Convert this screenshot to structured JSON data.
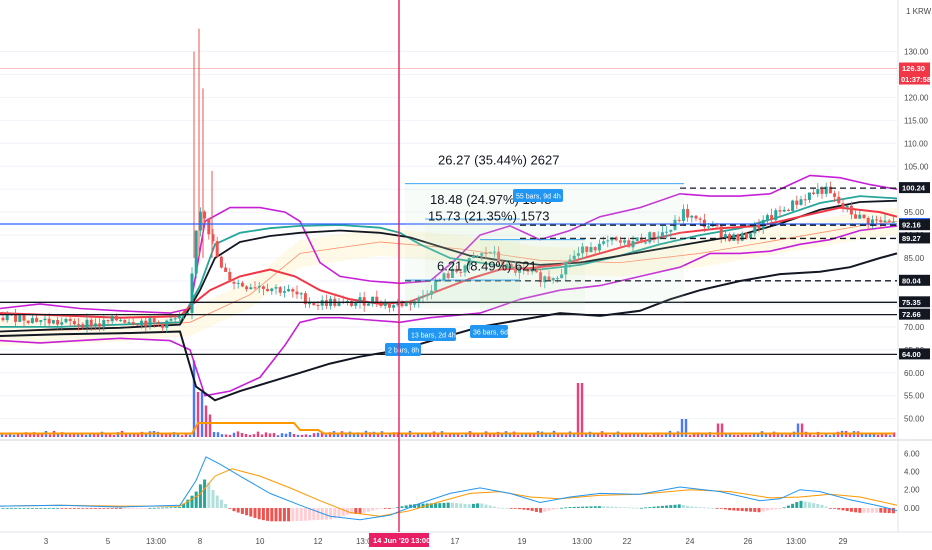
{
  "chart_data": {
    "type": "candlestick",
    "currency": "1 KRW",
    "price_axis": {
      "ylim": [
        46,
        136
      ],
      "ticks": [
        "130.00",
        "125.00",
        "120.00",
        "115.00",
        "110.00",
        "105.00",
        "100.00",
        "95.00",
        "90.00",
        "85.00",
        "80.00",
        "75.00",
        "70.00",
        "65.00",
        "60.00",
        "55.00",
        "50.00"
      ]
    },
    "macd_axis": {
      "ylim": [
        -2.2,
        6.8
      ],
      "ticks": [
        "6.00",
        "4.00",
        "2.00",
        "0.00"
      ]
    },
    "x_ticks": [
      "3",
      "5",
      "13:00",
      "8",
      "10",
      "12",
      "13:00",
      "17",
      "19",
      "13:00",
      "22",
      "24",
      "26",
      "13:00",
      "29"
    ],
    "cursor_label": "14 Jun '20   13:00",
    "current_price": {
      "label": "126.30",
      "countdown": "01:37:58",
      "color": "#f23645"
    },
    "levels": [
      {
        "value": 100.24,
        "label": "100.24",
        "color": "#131722",
        "dashed": true
      },
      {
        "value": 92.41,
        "label": "92.41",
        "color": "#2962ff",
        "dashed": false
      },
      {
        "value": 92.16,
        "label": "92.16",
        "color": "#131722",
        "dashed": true
      },
      {
        "value": 89.27,
        "label": "89.27",
        "color": "#131722",
        "dashed": true
      },
      {
        "value": 80.04,
        "label": "80.04",
        "color": "#131722",
        "dashed": true
      },
      {
        "value": 75.35,
        "label": "75.35",
        "color": "#131722",
        "dashed": false
      },
      {
        "value": 72.66,
        "label": "72.66",
        "color": "#131722",
        "dashed": false
      },
      {
        "value": 64.0,
        "label": "64.00",
        "color": "#131722",
        "dashed": false
      }
    ],
    "measurements": [
      "26.27 (35.44%) 2627",
      "18.48 (24.97%) 1848",
      "15.73 (21.35%) 1573",
      "6.21 (8.49%) 621"
    ],
    "bar_labels": [
      "55 bars, 9d 4h",
      "13 bars, 2d 4h",
      "36 bars, 6d",
      "2 bars, 8h"
    ],
    "close_path": [
      [
        0,
        72
      ],
      [
        20,
        72.2
      ],
      [
        40,
        71.5
      ],
      [
        60,
        70.8
      ],
      [
        80,
        71
      ],
      [
        100,
        70.5
      ],
      [
        120,
        71.8
      ],
      [
        140,
        71.2
      ],
      [
        160,
        70.6
      ],
      [
        175,
        71.5
      ],
      [
        188,
        72
      ],
      [
        194,
        86
      ],
      [
        198,
        96
      ],
      [
        204,
        95
      ],
      [
        210,
        90
      ],
      [
        216,
        86
      ],
      [
        222,
        82
      ],
      [
        232,
        80
      ],
      [
        244,
        79
      ],
      [
        256,
        79.2
      ],
      [
        270,
        78.6
      ],
      [
        284,
        78
      ],
      [
        300,
        76.5
      ],
      [
        316,
        75
      ],
      [
        330,
        75.5
      ],
      [
        345,
        74.8
      ],
      [
        360,
        75.5
      ],
      [
        375,
        76
      ],
      [
        390,
        74.6
      ],
      [
        405,
        75.2
      ],
      [
        420,
        76
      ],
      [
        432,
        79
      ],
      [
        445,
        81
      ],
      [
        460,
        82.5
      ],
      [
        475,
        85
      ],
      [
        490,
        86.5
      ],
      [
        505,
        83
      ],
      [
        520,
        82
      ],
      [
        535,
        81
      ],
      [
        548,
        80.6
      ],
      [
        560,
        82
      ],
      [
        570,
        85
      ],
      [
        580,
        86
      ],
      [
        590,
        88
      ],
      [
        600,
        87.5
      ],
      [
        612,
        88.5
      ],
      [
        625,
        88
      ],
      [
        640,
        89
      ],
      [
        655,
        90
      ],
      [
        670,
        91
      ],
      [
        684,
        95
      ],
      [
        696,
        93
      ],
      [
        710,
        92
      ],
      [
        725,
        90
      ],
      [
        740,
        89
      ],
      [
        752,
        91
      ],
      [
        765,
        93
      ],
      [
        780,
        95
      ],
      [
        795,
        97
      ],
      [
        810,
        99
      ],
      [
        824,
        100
      ],
      [
        838,
        97
      ],
      [
        850,
        95
      ],
      [
        862,
        93.5
      ],
      [
        874,
        93
      ],
      [
        886,
        92.6
      ],
      [
        897,
        92.4
      ]
    ],
    "ma_red": [
      [
        0,
        73
      ],
      [
        60,
        72.5
      ],
      [
        120,
        72
      ],
      [
        180,
        72.3
      ],
      [
        190,
        74.5
      ],
      [
        210,
        78
      ],
      [
        240,
        81
      ],
      [
        270,
        82.5
      ],
      [
        295,
        81
      ],
      [
        320,
        78
      ],
      [
        350,
        76
      ],
      [
        380,
        75
      ],
      [
        410,
        75.5
      ],
      [
        440,
        78
      ],
      [
        470,
        80.5
      ],
      [
        500,
        82.5
      ],
      [
        530,
        82.8
      ],
      [
        560,
        83.5
      ],
      [
        600,
        86
      ],
      [
        640,
        88.5
      ],
      [
        680,
        90.5
      ],
      [
        720,
        91.5
      ],
      [
        760,
        92
      ],
      [
        800,
        94
      ],
      [
        840,
        96
      ],
      [
        880,
        95
      ],
      [
        897,
        94
      ]
    ],
    "ma_teal": [
      [
        0,
        70
      ],
      [
        60,
        70
      ],
      [
        120,
        70.5
      ],
      [
        180,
        71
      ],
      [
        200,
        79
      ],
      [
        215,
        88
      ],
      [
        240,
        90.5
      ],
      [
        270,
        91.5
      ],
      [
        300,
        92
      ],
      [
        340,
        92.2
      ],
      [
        380,
        91.6
      ],
      [
        400,
        90.5
      ],
      [
        420,
        88
      ],
      [
        450,
        85
      ],
      [
        480,
        84
      ],
      [
        510,
        83
      ],
      [
        540,
        82.5
      ],
      [
        580,
        83.5
      ],
      [
        620,
        85.5
      ],
      [
        660,
        88
      ],
      [
        700,
        90
      ],
      [
        740,
        91.5
      ],
      [
        780,
        94
      ],
      [
        820,
        97
      ],
      [
        860,
        98.5
      ],
      [
        897,
        98
      ]
    ],
    "ma_dark": [
      [
        0,
        69
      ],
      [
        60,
        69.5
      ],
      [
        120,
        69.8
      ],
      [
        180,
        70.5
      ],
      [
        200,
        78
      ],
      [
        215,
        85
      ],
      [
        240,
        88.5
      ],
      [
        270,
        89.8
      ],
      [
        300,
        90.5
      ],
      [
        340,
        91
      ],
      [
        380,
        90.5
      ],
      [
        410,
        89.5
      ],
      [
        440,
        87.5
      ],
      [
        470,
        85.5
      ],
      [
        500,
        84.5
      ],
      [
        540,
        83.5
      ],
      [
        580,
        84
      ],
      [
        620,
        85.5
      ],
      [
        660,
        87
      ],
      [
        700,
        88.5
      ],
      [
        740,
        90
      ],
      [
        780,
        92.5
      ],
      [
        820,
        95.5
      ],
      [
        860,
        97.2
      ],
      [
        897,
        97.5
      ]
    ],
    "ma_long": [
      [
        0,
        68
      ],
      [
        60,
        68.4
      ],
      [
        120,
        68.6
      ],
      [
        180,
        69
      ],
      [
        196,
        57
      ],
      [
        215,
        54
      ],
      [
        240,
        56
      ],
      [
        270,
        58
      ],
      [
        300,
        60
      ],
      [
        330,
        62
      ],
      [
        360,
        63.5
      ],
      [
        400,
        65
      ],
      [
        440,
        67.5
      ],
      [
        480,
        70
      ],
      [
        520,
        71.5
      ],
      [
        560,
        73
      ],
      [
        600,
        72.4
      ],
      [
        640,
        73.5
      ],
      [
        670,
        76
      ],
      [
        700,
        78
      ],
      [
        740,
        80
      ],
      [
        780,
        81.5
      ],
      [
        820,
        82
      ],
      [
        850,
        83
      ],
      [
        880,
        85
      ],
      [
        897,
        86
      ]
    ],
    "bb_upper": [
      [
        0,
        74
      ],
      [
        40,
        75
      ],
      [
        80,
        74
      ],
      [
        120,
        73.5
      ],
      [
        170,
        73
      ],
      [
        190,
        74
      ],
      [
        205,
        93
      ],
      [
        230,
        96
      ],
      [
        260,
        96
      ],
      [
        285,
        95
      ],
      [
        300,
        93
      ],
      [
        320,
        84
      ],
      [
        340,
        81
      ],
      [
        370,
        80
      ],
      [
        400,
        79.5
      ],
      [
        430,
        80
      ],
      [
        455,
        84.5
      ],
      [
        480,
        90
      ],
      [
        510,
        92
      ],
      [
        540,
        89
      ],
      [
        570,
        91
      ],
      [
        600,
        94
      ],
      [
        640,
        96
      ],
      [
        680,
        99
      ],
      [
        710,
        98.5
      ],
      [
        740,
        98.5
      ],
      [
        770,
        99
      ],
      [
        790,
        101
      ],
      [
        810,
        103
      ],
      [
        840,
        102.5
      ],
      [
        870,
        101
      ],
      [
        897,
        100
      ]
    ],
    "bb_lower": [
      [
        0,
        67
      ],
      [
        40,
        66.5
      ],
      [
        80,
        67
      ],
      [
        120,
        67.5
      ],
      [
        170,
        67
      ],
      [
        190,
        65
      ],
      [
        205,
        55
      ],
      [
        230,
        56
      ],
      [
        260,
        59
      ],
      [
        285,
        66
      ],
      [
        300,
        71
      ],
      [
        320,
        72
      ],
      [
        340,
        72
      ],
      [
        370,
        71.5
      ],
      [
        400,
        71
      ],
      [
        430,
        72
      ],
      [
        455,
        72.5
      ],
      [
        480,
        73
      ],
      [
        520,
        76
      ],
      [
        560,
        78
      ],
      [
        600,
        79
      ],
      [
        640,
        81
      ],
      [
        680,
        83
      ],
      [
        710,
        86
      ],
      [
        740,
        86
      ],
      [
        770,
        86.5
      ],
      [
        800,
        88
      ],
      [
        830,
        89
      ],
      [
        860,
        91
      ],
      [
        897,
        92
      ]
    ],
    "orange_band": [
      [
        0,
        69
      ],
      [
        100,
        69.5
      ],
      [
        190,
        71
      ],
      [
        250,
        77
      ],
      [
        300,
        86
      ],
      [
        380,
        88.5
      ],
      [
        460,
        87
      ],
      [
        540,
        84.5
      ],
      [
        620,
        84
      ],
      [
        700,
        86
      ],
      [
        780,
        89
      ],
      [
        860,
        92
      ],
      [
        897,
        93
      ]
    ],
    "volume": {
      "spikes": [
        [
          196,
          0.85
        ],
        [
          200,
          0.5
        ],
        [
          205,
          0.35
        ],
        [
          210,
          0.25
        ],
        [
          580,
          0.6
        ],
        [
          684,
          0.2
        ],
        [
          720,
          0.15
        ],
        [
          800,
          0.15
        ]
      ]
    },
    "macd": {
      "line": [
        [
          0,
          0.2
        ],
        [
          60,
          0.3
        ],
        [
          120,
          0.1
        ],
        [
          180,
          0.3
        ],
        [
          196,
          3
        ],
        [
          206,
          5.6
        ],
        [
          220,
          4.8
        ],
        [
          240,
          3.5
        ],
        [
          270,
          1.6
        ],
        [
          300,
          0.3
        ],
        [
          330,
          -0.9
        ],
        [
          360,
          -1.3
        ],
        [
          390,
          -0.8
        ],
        [
          420,
          0.5
        ],
        [
          450,
          1.6
        ],
        [
          480,
          2.2
        ],
        [
          510,
          1.6
        ],
        [
          540,
          0.6
        ],
        [
          570,
          1.2
        ],
        [
          600,
          1.6
        ],
        [
          640,
          1.5
        ],
        [
          680,
          2.3
        ],
        [
          720,
          1.8
        ],
        [
          760,
          0.8
        ],
        [
          780,
          1
        ],
        [
          800,
          2
        ],
        [
          820,
          1.8
        ],
        [
          850,
          0.9
        ],
        [
          880,
          0.2
        ],
        [
          897,
          -0.3
        ]
      ],
      "signal": [
        [
          0,
          0.2
        ],
        [
          60,
          0.3
        ],
        [
          120,
          0.2
        ],
        [
          180,
          0.2
        ],
        [
          200,
          1.5
        ],
        [
          215,
          3.5
        ],
        [
          232,
          4.3
        ],
        [
          260,
          3.5
        ],
        [
          290,
          2.2
        ],
        [
          320,
          0.8
        ],
        [
          350,
          -0.5
        ],
        [
          380,
          -0.9
        ],
        [
          410,
          -0.3
        ],
        [
          440,
          0.7
        ],
        [
          470,
          1.6
        ],
        [
          500,
          1.8
        ],
        [
          530,
          1.2
        ],
        [
          560,
          1
        ],
        [
          600,
          1.4
        ],
        [
          640,
          1.5
        ],
        [
          690,
          2
        ],
        [
          730,
          1.8
        ],
        [
          770,
          1.1
        ],
        [
          800,
          1.2
        ],
        [
          830,
          1.5
        ],
        [
          860,
          1.2
        ],
        [
          897,
          0.3
        ]
      ],
      "hist_colors": {
        "pos_strong": "#26a69a",
        "pos_weak": "#b2dfdb",
        "neg_strong": "#ef5350",
        "neg_weak": "#ffcdd2"
      }
    },
    "colors": {
      "up": "#26a69a",
      "down": "#ef5350",
      "ma_red": "#f23645",
      "ma_teal": "#26a69a",
      "ma_dark": "#131722",
      "bb": "#c71fd8",
      "macd_line": "#2196f3",
      "signal_line": "#ff9800",
      "measure": "#2196f3",
      "cursor": "#e91e63",
      "volume_up": "#2962ff",
      "volume_down": "#e91e63"
    }
  }
}
